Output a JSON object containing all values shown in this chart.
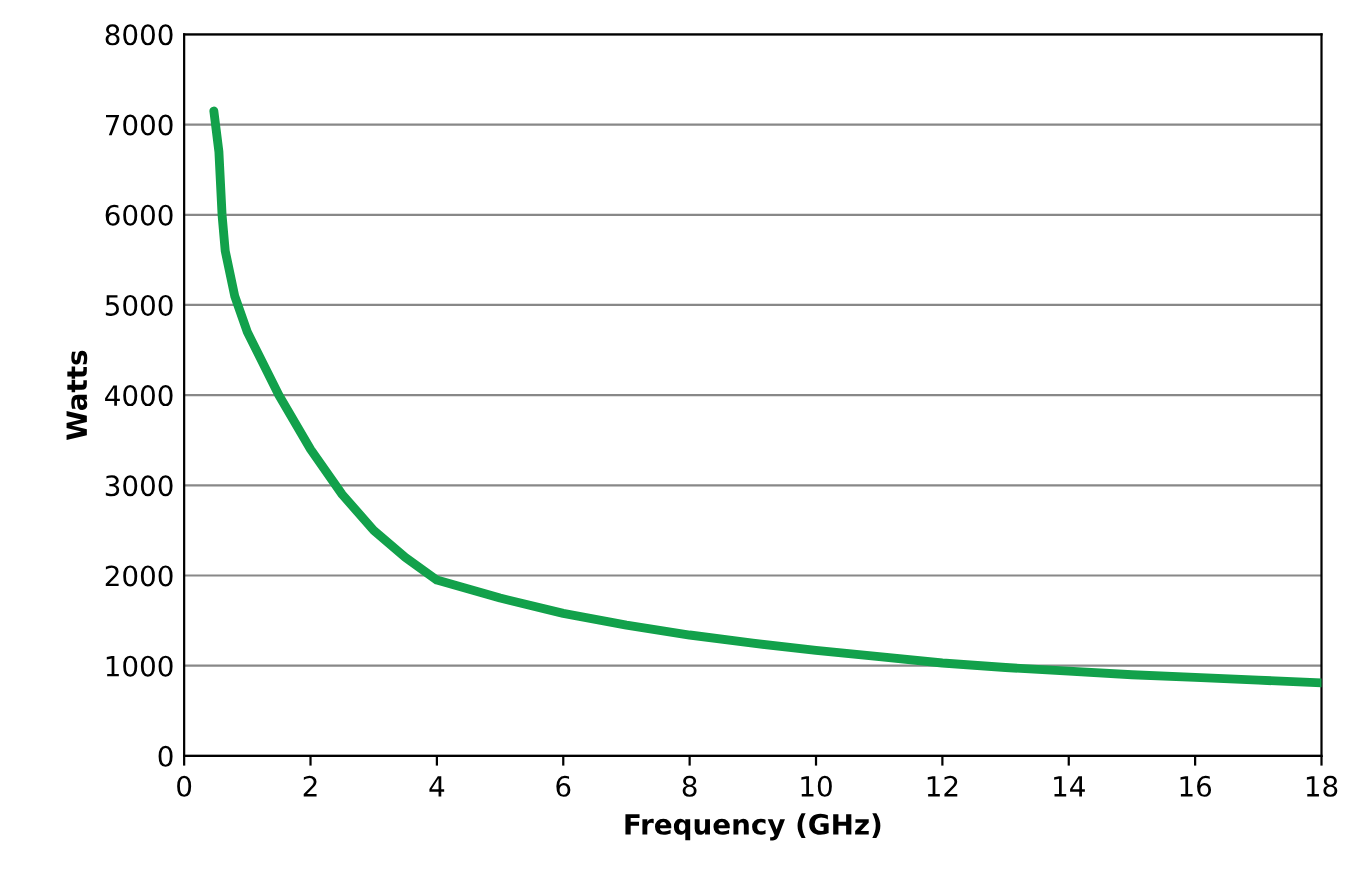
{
  "chart_data": {
    "type": "line",
    "xlabel": "Frequency (GHz)",
    "ylabel": "Watts",
    "x": [
      0.47,
      0.55,
      0.6,
      0.65,
      0.8,
      1.0,
      1.5,
      2,
      2.5,
      3,
      3.5,
      4,
      5,
      6,
      7,
      8,
      9,
      10,
      11,
      12,
      13,
      14,
      15,
      16,
      17,
      18
    ],
    "series": [
      {
        "color": "#12a14b",
        "values": [
          7150,
          6700,
          6000,
          5600,
          5100,
          4700,
          4000,
          3400,
          2900,
          2500,
          2200,
          1950,
          1750,
          1580,
          1450,
          1340,
          1250,
          1170,
          1100,
          1030,
          980,
          940,
          900,
          870,
          840,
          810
        ]
      }
    ],
    "xlim": [
      0,
      18
    ],
    "xticks": [
      0,
      2,
      4,
      6,
      8,
      10,
      12,
      14,
      16,
      18
    ],
    "ylim": [
      0,
      8000
    ],
    "yticks": [
      0,
      1000,
      2000,
      3000,
      4000,
      5000,
      6000,
      7000,
      8000
    ],
    "grid": "y",
    "marker": "none",
    "line_style": "solid"
  }
}
